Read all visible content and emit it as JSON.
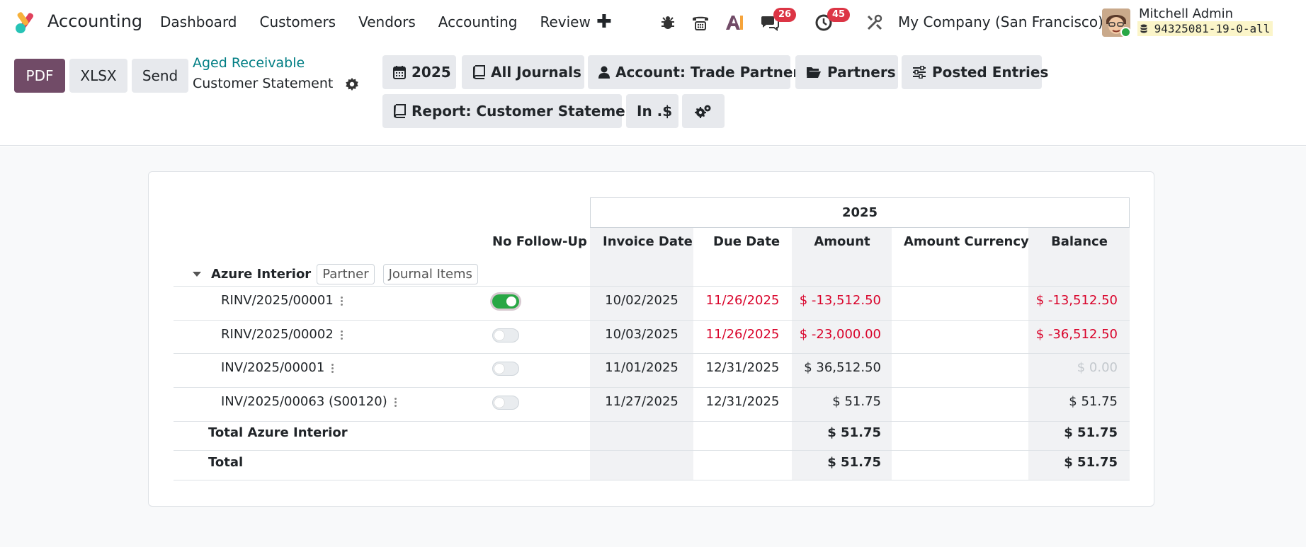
{
  "app": {
    "name": "Accounting"
  },
  "menu": [
    "Dashboard",
    "Customers",
    "Vendors",
    "Accounting",
    "Review"
  ],
  "systray": {
    "messages_badge": "26",
    "activities_badge": "45",
    "company": "My Company (San Francisco)",
    "user_name": "Mitchell Admin",
    "database": "94325081-19-0-all"
  },
  "control_panel": {
    "pdf": "PDF",
    "xlsx": "XLSX",
    "send": "Send",
    "breadcrumb_parent": "Aged Receivable",
    "breadcrumb_current": "Customer Statement",
    "filters": {
      "year": "2025",
      "journals": "All Journals",
      "account": "Account: Trade Partners",
      "partners": "Partners",
      "posted": "Posted Entries",
      "report": "Report: Customer Statement",
      "currency": "In .$"
    }
  },
  "report": {
    "period": "2025",
    "columns": {
      "no_follow_up": "No Follow-Up",
      "invoice_date": "Invoice Date",
      "due_date": "Due Date",
      "amount": "Amount",
      "amount_currency": "Amount Currency",
      "balance": "Balance"
    },
    "partner": {
      "name": "Azure Interior",
      "partner_btn": "Partner",
      "journal_items_btn": "Journal Items"
    },
    "lines": [
      {
        "name": "RINV/2025/00001",
        "no_follow_up": true,
        "invoice_date": "10/02/2025",
        "due_date": "11/26/2025",
        "amount": "$ -13,512.50",
        "balance": "$ -13,512.50"
      },
      {
        "name": "RINV/2025/00002",
        "no_follow_up": false,
        "invoice_date": "10/03/2025",
        "due_date": "11/26/2025",
        "amount": "$ -23,000.00",
        "balance": "$ -36,512.50"
      },
      {
        "name": "INV/2025/00001",
        "no_follow_up": false,
        "invoice_date": "11/01/2025",
        "due_date": "12/31/2025",
        "amount": "$ 36,512.50",
        "balance": "$ 0.00"
      },
      {
        "name": "INV/2025/00063 (S00120)",
        "no_follow_up": false,
        "invoice_date": "11/27/2025",
        "due_date": "12/31/2025",
        "amount": "$ 51.75",
        "balance": "$ 51.75"
      }
    ],
    "total_partner": {
      "label": "Total Azure Interior",
      "amount": "$ 51.75",
      "balance": "$ 51.75"
    },
    "total": {
      "label": "Total",
      "amount": "$ 51.75",
      "balance": "$ 51.75"
    }
  },
  "colors": {
    "brand": "#714b67",
    "link": "#017e84",
    "negative": "#d9042b",
    "toggle_on": "#28a745",
    "badge": "#dc3545"
  }
}
